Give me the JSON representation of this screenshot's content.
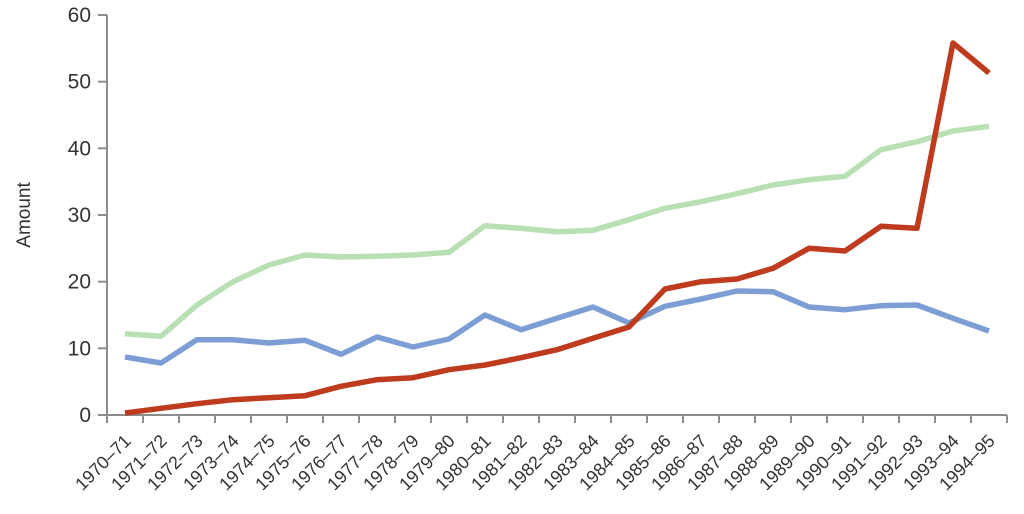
{
  "chart_data": {
    "type": "line",
    "title": "",
    "ylabel": "Amount",
    "xlabel": "",
    "ylim": [
      0,
      60
    ],
    "yticks": [
      0,
      10,
      20,
      30,
      40,
      50,
      60
    ],
    "grid": false,
    "legend": "none",
    "categories": [
      "1970–71",
      "1971–72",
      "1972–73",
      "1973–74",
      "1974–75",
      "1975–76",
      "1976–77",
      "1977–78",
      "1978–79",
      "1979–80",
      "1980–81",
      "1981–82",
      "1982–83",
      "1983–84",
      "1984–85",
      "1985–86",
      "1986–87",
      "1987–88",
      "1988–89",
      "1989–90",
      "1990–91",
      "1991–92",
      "1992–93",
      "1993–94",
      "1994–95"
    ],
    "series": [
      {
        "name": "green-line",
        "color": "#b9e0b4",
        "values": [
          12.2,
          11.8,
          16.5,
          20,
          22.5,
          24,
          23.7,
          23.8,
          24,
          24.4,
          28.4,
          28,
          27.5,
          27.7,
          29.3,
          31,
          32,
          33.2,
          34.5,
          35.3,
          35.8,
          39.8,
          41,
          42.6,
          43.3
        ]
      },
      {
        "name": "blue-line",
        "color": "#7d9ed4",
        "values": [
          8.7,
          7.8,
          11.3,
          11.3,
          10.8,
          11.2,
          9.1,
          11.7,
          10.2,
          11.4,
          15,
          12.8,
          14.5,
          16.2,
          13.8,
          16.3,
          17.4,
          18.6,
          18.5,
          16.2,
          15.8,
          16.4,
          16.5,
          14.5,
          12.6
        ]
      },
      {
        "name": "red-line",
        "color": "#bf3b1e",
        "values": [
          0.3,
          1,
          1.7,
          2.3,
          2.6,
          2.9,
          4.3,
          5.3,
          5.6,
          6.8,
          7.5,
          8.6,
          9.8,
          11.5,
          13.2,
          18.9,
          20,
          20.4,
          22,
          25,
          24.6,
          28.3,
          28,
          55.8,
          51.3
        ]
      }
    ],
    "colors": {
      "axis": "#8c8c8c",
      "text": "#333333",
      "background": "#ffffff"
    }
  }
}
